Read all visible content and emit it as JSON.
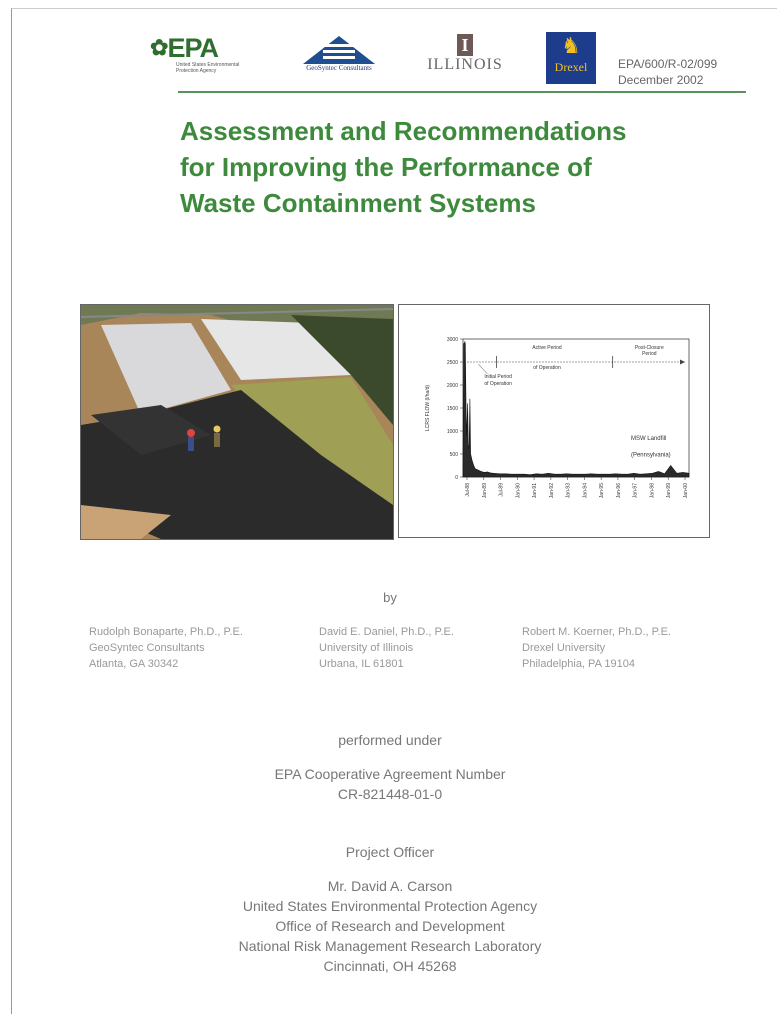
{
  "header": {
    "epa_logo_text": "EPA",
    "epa_logo_sub": "United States Environmental Protection Agency",
    "geosyntec_text": "GeoSyntec Consultants",
    "illinois_text": "ILLINOIS",
    "drexel_text": "Drexel",
    "report_number": "EPA/600/R-02/099",
    "report_date": "December 2002"
  },
  "title": {
    "line1": "Assessment and Recommendations",
    "line2": "for Improving the Performance of",
    "line3": "Waste Containment Systems"
  },
  "colors": {
    "title_green": "#3d8a3d",
    "rule_green": "#5a935a",
    "epa_green": "#2f6e2f",
    "chart_fill": "#2a2a2a"
  },
  "chart_data": {
    "type": "area",
    "ylabel": "LCRS FLOW (l/ha/d)",
    "ylim": [
      0,
      3000
    ],
    "yticks": [
      "3000",
      "2500",
      "2000",
      "1500",
      "1000",
      "500",
      "0"
    ],
    "xticks": [
      "Jul-88",
      "Jan-89",
      "Jul-89",
      "Jan-90",
      "Jan-91",
      "Jan-92",
      "Jan-93",
      "Jan-94",
      "Jan-95",
      "Jan-96",
      "Jan-97",
      "Jan-98",
      "Jan-99",
      "Jan-00"
    ],
    "annotations": {
      "active_period": "Active Period of Operation",
      "post_closure": "Post-Closure Period",
      "initial_period": "Initial Period of Operation",
      "site_label_1": "MSW Landfill",
      "site_label_2": "(Pennsylvania)"
    },
    "series": [
      {
        "x": [
          0,
          0.5,
          1,
          1.2,
          1.5,
          2,
          2.5,
          3,
          3.5,
          4,
          4.5,
          5,
          6,
          7,
          8,
          10,
          12,
          14,
          16,
          18,
          20,
          24,
          28,
          32,
          36,
          40,
          44,
          48,
          52,
          56,
          60,
          64,
          68,
          72,
          76,
          80,
          84,
          88,
          92,
          96,
          100,
          104,
          108,
          112,
          116,
          120,
          124,
          128,
          132,
          136,
          140,
          144,
          148
        ],
        "values": [
          200,
          2900,
          2900,
          2950,
          2900,
          1400,
          900,
          1600,
          700,
          600,
          1700,
          500,
          350,
          250,
          180,
          150,
          120,
          100,
          110,
          90,
          80,
          70,
          70,
          60,
          60,
          60,
          50,
          70,
          60,
          80,
          60,
          60,
          70,
          60,
          60,
          60,
          70,
          60,
          60,
          60,
          70,
          60,
          60,
          80,
          60,
          70,
          80,
          120,
          70,
          250,
          80,
          100,
          80
        ]
      }
    ]
  },
  "byline": "by",
  "authors": [
    {
      "name": "Rudolph Bonaparte, Ph.D., P.E.",
      "org": "GeoSyntec Consultants",
      "place": "Atlanta, GA  30342"
    },
    {
      "name": "David E. Daniel, Ph.D., P.E.",
      "org": "University of Illinois",
      "place": "Urbana, IL  61801"
    },
    {
      "name": "Robert M. Koerner, Ph.D., P.E.",
      "org": "Drexel University",
      "place": "Philadelphia, PA  19104"
    }
  ],
  "performed_under": "performed under",
  "agreement_label": "EPA Cooperative Agreement Number",
  "agreement_number": "CR-821448-01-0",
  "project_officer": {
    "heading": "Project Officer",
    "name": "Mr. David A. Carson",
    "agency": "United States Environmental Protection Agency",
    "office": "Office of Research and Development",
    "lab": "National Risk Management Research Laboratory",
    "city": "Cincinnati, OH  45268"
  }
}
